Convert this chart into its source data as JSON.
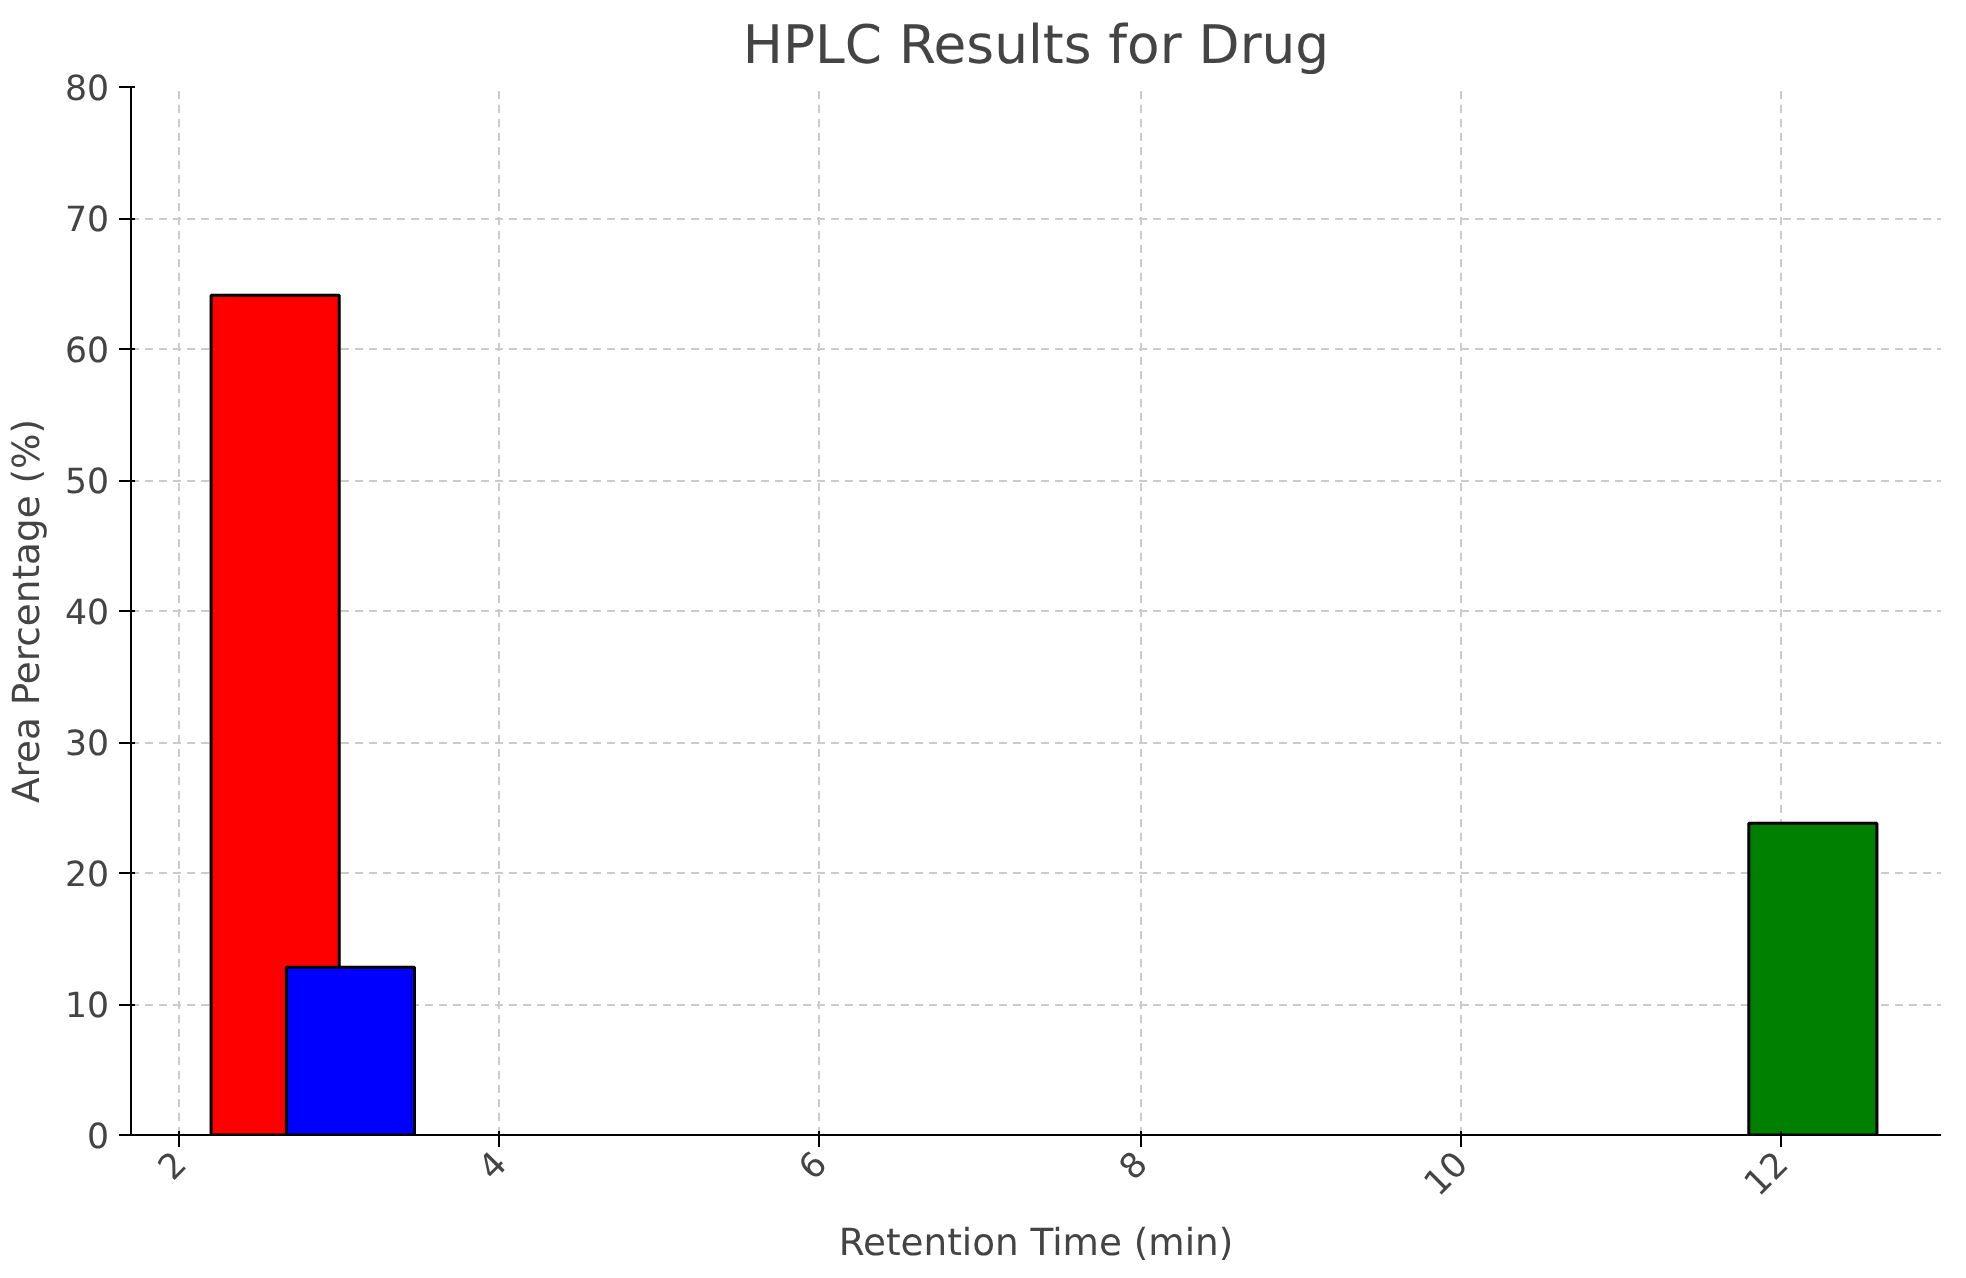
{
  "chart_data": {
    "type": "bar",
    "title": "HPLC Results for Drug",
    "xlabel": "Retention Time (min)",
    "ylabel": "Area Percentage (%)",
    "x": [
      2.6,
      3.07,
      12.2
    ],
    "values": [
      64.1,
      12.8,
      23.8
    ],
    "colors": [
      "#ff0000",
      "#0000ff",
      "#008000"
    ],
    "xlim": [
      1.7,
      13.0
    ],
    "xticks": [
      2,
      4,
      6,
      8,
      10,
      12
    ],
    "ylim": [
      0,
      80
    ],
    "yticks": [
      0,
      10,
      20,
      30,
      40,
      50,
      60,
      70,
      80
    ],
    "grid": true
  }
}
